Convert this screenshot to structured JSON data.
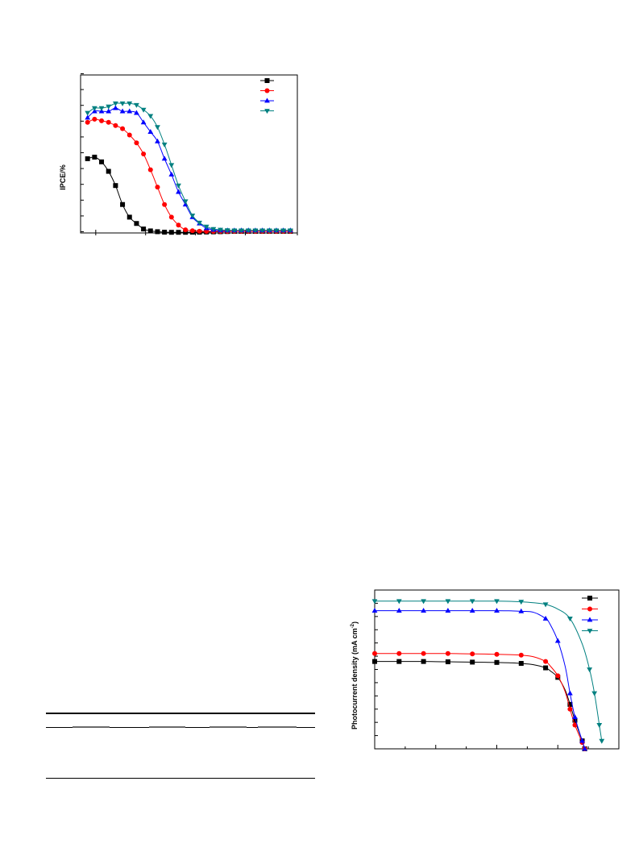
{
  "chart_data": [
    {
      "type": "line",
      "title": "",
      "xlabel": "",
      "ylabel": "IPCE/%",
      "xlim": [
        0,
        31
      ],
      "ylim": [
        0,
        100
      ],
      "x": [
        1,
        2,
        3,
        4,
        5,
        6,
        7,
        8,
        9,
        10,
        11,
        12,
        13,
        14,
        15,
        16,
        17,
        18,
        19,
        20,
        21,
        22,
        23,
        24,
        25,
        26,
        27,
        28,
        29,
        30
      ],
      "legend": "top-right",
      "series": [
        {
          "color": "#000000",
          "marker": "square",
          "values": [
            47,
            48,
            45,
            39,
            30,
            18,
            10,
            6,
            2.5,
            1.3,
            0.8,
            0.5,
            0.4,
            0.4,
            0.4,
            0.5,
            0.5,
            0.6,
            0.7,
            0.8,
            0.9,
            1.0,
            1.0,
            1.0,
            1.0,
            1.0,
            1.0,
            1.0,
            1.0,
            1.0
          ]
        },
        {
          "color": "#ff0000",
          "marker": "circle",
          "values": [
            70,
            72,
            71,
            70,
            68,
            66,
            62,
            57,
            50,
            40,
            29,
            18,
            10,
            5,
            2,
            1.4,
            1.1,
            1.0,
            1.0,
            1.0,
            1.0,
            1.0,
            1.0,
            1.0,
            1.0,
            1.0,
            1.0,
            1.0,
            1.0,
            1.0
          ]
        },
        {
          "color": "#0000ff",
          "marker": "triangle-up",
          "values": [
            73,
            77,
            77,
            77,
            79,
            77,
            77,
            76,
            70,
            64,
            58,
            47,
            37,
            26,
            18,
            10,
            6,
            3,
            2,
            1.6,
            1.6,
            1.6,
            1.6,
            1.6,
            1.6,
            1.6,
            1.6,
            1.6,
            1.6,
            1.6
          ]
        },
        {
          "color": "#008080",
          "marker": "triangle-down",
          "values": [
            76,
            79,
            79,
            80,
            82,
            82,
            82,
            81,
            78,
            74,
            67,
            56,
            43,
            30,
            20,
            11,
            6.5,
            4,
            2.5,
            2,
            1.7,
            1.6,
            1.6,
            1.6,
            1.6,
            1.6,
            1.6,
            1.6,
            1.6,
            1.6
          ]
        }
      ]
    },
    {
      "type": "line",
      "title": "",
      "xlabel": "",
      "ylabel": "Photocurrent density  (mA cm",
      "ylabel_sup": "-2",
      "ylabel_close": ")",
      "xlim": [
        0,
        1.0
      ],
      "ylim": [
        0,
        1.0
      ],
      "legend": "top-right",
      "series": [
        {
          "color": "#000000",
          "marker": "square",
          "x": [
            0,
            0.05,
            0.1,
            0.15,
            0.2,
            0.25,
            0.3,
            0.35,
            0.4,
            0.45,
            0.5,
            0.55,
            0.6,
            0.65,
            0.7,
            0.72,
            0.75,
            0.78,
            0.8,
            0.82,
            0.85,
            0.86
          ],
          "y": [
            0.55,
            0.55,
            0.55,
            0.55,
            0.55,
            0.549,
            0.548,
            0.547,
            0.546,
            0.545,
            0.544,
            0.542,
            0.538,
            0.53,
            0.51,
            0.49,
            0.45,
            0.37,
            0.28,
            0.18,
            0.05,
            0
          ]
        },
        {
          "color": "#ff0000",
          "marker": "circle",
          "x": [
            0,
            0.05,
            0.1,
            0.15,
            0.2,
            0.25,
            0.3,
            0.35,
            0.4,
            0.45,
            0.5,
            0.55,
            0.6,
            0.65,
            0.7,
            0.72,
            0.75,
            0.78,
            0.8,
            0.82,
            0.85,
            0.86
          ],
          "y": [
            0.6,
            0.6,
            0.6,
            0.6,
            0.6,
            0.6,
            0.6,
            0.599,
            0.598,
            0.597,
            0.595,
            0.593,
            0.59,
            0.58,
            0.55,
            0.52,
            0.46,
            0.36,
            0.25,
            0.15,
            0.04,
            0
          ]
        },
        {
          "color": "#0000ff",
          "marker": "triangle-up",
          "x": [
            0,
            0.05,
            0.1,
            0.15,
            0.2,
            0.25,
            0.3,
            0.35,
            0.4,
            0.45,
            0.5,
            0.55,
            0.6,
            0.65,
            0.7,
            0.72,
            0.75,
            0.78,
            0.8,
            0.82,
            0.85,
            0.86
          ],
          "y": [
            0.87,
            0.87,
            0.87,
            0.87,
            0.87,
            0.87,
            0.87,
            0.87,
            0.87,
            0.87,
            0.87,
            0.869,
            0.866,
            0.86,
            0.82,
            0.78,
            0.68,
            0.52,
            0.35,
            0.2,
            0.05,
            0
          ]
        },
        {
          "color": "#008080",
          "marker": "triangle-down",
          "x": [
            0,
            0.05,
            0.1,
            0.15,
            0.2,
            0.25,
            0.3,
            0.35,
            0.4,
            0.45,
            0.5,
            0.55,
            0.6,
            0.65,
            0.7,
            0.75,
            0.8,
            0.85,
            0.88,
            0.9,
            0.92,
            0.93
          ],
          "y": [
            0.93,
            0.93,
            0.93,
            0.93,
            0.93,
            0.93,
            0.93,
            0.93,
            0.93,
            0.93,
            0.93,
            0.929,
            0.926,
            0.92,
            0.91,
            0.88,
            0.82,
            0.66,
            0.5,
            0.35,
            0.15,
            0.05
          ]
        }
      ]
    }
  ]
}
